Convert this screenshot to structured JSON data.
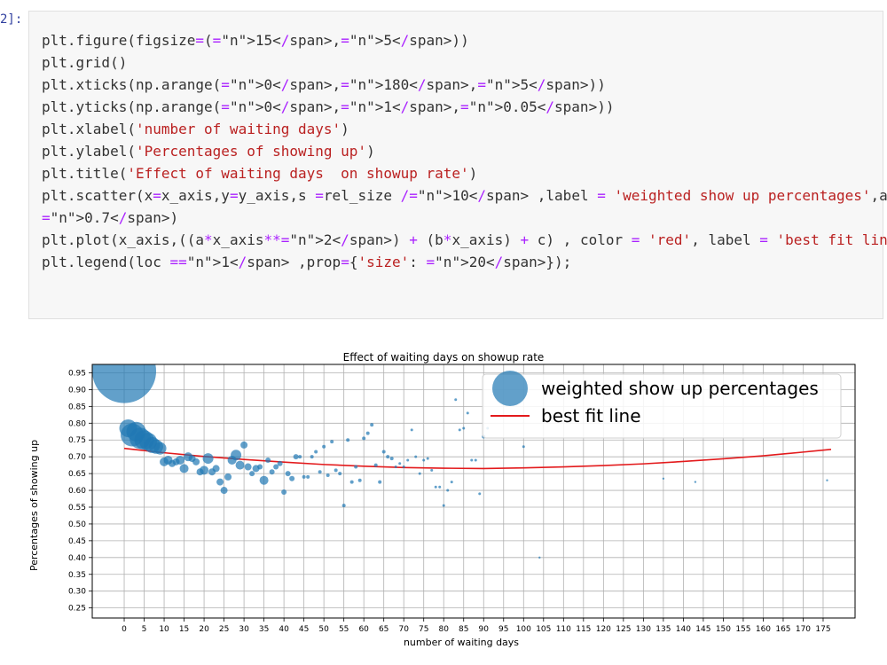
{
  "cell": {
    "prompt": "2]:",
    "code_lines": [
      "plt.figure(figsize=(15,5))",
      "plt.grid()",
      "plt.xticks(np.arange(0,180,5))",
      "plt.yticks(np.arange(0,1,0.05))",
      "plt.xlabel('number of waiting days')",
      "plt.ylabel('Percentages of showing up')",
      "plt.title('Effect of waiting days  on showup rate')",
      "plt.scatter(x=x_axis,y=y_axis,s =rel_size /10 ,label = 'weighted show up percentages',alpha=",
      "0.7)",
      "plt.plot(x_axis,((a*x_axis**2) + (b*x_axis) + c) , color = 'red', label = 'best fit line')",
      "plt.legend(loc =1 ,prop={'size': 20});"
    ]
  },
  "chart_data": {
    "type": "scatter",
    "title": "Effect of waiting days  on showup rate",
    "xlabel": "number of waiting days",
    "ylabel": "Percentages of showing up",
    "xlim": [
      -8,
      183
    ],
    "ylim": [
      0.22,
      0.975
    ],
    "xticks": [
      0,
      5,
      10,
      15,
      20,
      25,
      30,
      35,
      40,
      45,
      50,
      55,
      60,
      65,
      70,
      75,
      80,
      85,
      90,
      95,
      100,
      105,
      110,
      115,
      120,
      125,
      130,
      135,
      140,
      145,
      150,
      155,
      160,
      165,
      170,
      175
    ],
    "yticks": [
      0.25,
      0.3,
      0.35,
      0.4,
      0.45,
      0.5,
      0.55,
      0.6,
      0.65,
      0.7,
      0.75,
      0.8,
      0.85,
      0.9,
      0.95
    ],
    "grid": true,
    "legend_position": "top-right",
    "series": [
      {
        "name": "weighted show up percentages",
        "kind": "scatter",
        "color": "#1f77b4",
        "points": [
          [
            0,
            0.955,
            36
          ],
          [
            1,
            0.785,
            10
          ],
          [
            2,
            0.765,
            13
          ],
          [
            3,
            0.775,
            11
          ],
          [
            4,
            0.755,
            12
          ],
          [
            5,
            0.75,
            11
          ],
          [
            6,
            0.745,
            10
          ],
          [
            7,
            0.735,
            9
          ],
          [
            8,
            0.73,
            8
          ],
          [
            9,
            0.725,
            7
          ],
          [
            10,
            0.685,
            5
          ],
          [
            11,
            0.69,
            5
          ],
          [
            12,
            0.68,
            4
          ],
          [
            13,
            0.685,
            4
          ],
          [
            14,
            0.69,
            5
          ],
          [
            15,
            0.665,
            5
          ],
          [
            16,
            0.7,
            5
          ],
          [
            17,
            0.695,
            4
          ],
          [
            18,
            0.685,
            4
          ],
          [
            19,
            0.655,
            4
          ],
          [
            20,
            0.66,
            5
          ],
          [
            21,
            0.695,
            6
          ],
          [
            22,
            0.655,
            4
          ],
          [
            23,
            0.665,
            4
          ],
          [
            24,
            0.625,
            4
          ],
          [
            25,
            0.6,
            4
          ],
          [
            26,
            0.64,
            4
          ],
          [
            27,
            0.69,
            5
          ],
          [
            28,
            0.705,
            6
          ],
          [
            29,
            0.675,
            5
          ],
          [
            30,
            0.735,
            4
          ],
          [
            31,
            0.67,
            4
          ],
          [
            32,
            0.65,
            3
          ],
          [
            33,
            0.665,
            4
          ],
          [
            34,
            0.67,
            3
          ],
          [
            35,
            0.63,
            5
          ],
          [
            36,
            0.69,
            3
          ],
          [
            37,
            0.655,
            3
          ],
          [
            38,
            0.67,
            3
          ],
          [
            39,
            0.68,
            3
          ],
          [
            40,
            0.595,
            3
          ],
          [
            41,
            0.65,
            3
          ],
          [
            42,
            0.635,
            3
          ],
          [
            43,
            0.7,
            3
          ],
          [
            44,
            0.7,
            2
          ],
          [
            45,
            0.64,
            2
          ],
          [
            46,
            0.64,
            2
          ],
          [
            47,
            0.7,
            2
          ],
          [
            48,
            0.715,
            2
          ],
          [
            49,
            0.655,
            2
          ],
          [
            50,
            0.73,
            2
          ],
          [
            51,
            0.645,
            2
          ],
          [
            52,
            0.745,
            2
          ],
          [
            53,
            0.66,
            2
          ],
          [
            54,
            0.65,
            2
          ],
          [
            55,
            0.555,
            2
          ],
          [
            56,
            0.75,
            2
          ],
          [
            57,
            0.625,
            2
          ],
          [
            58,
            0.67,
            2
          ],
          [
            59,
            0.63,
            2
          ],
          [
            60,
            0.755,
            2
          ],
          [
            61,
            0.77,
            2
          ],
          [
            62,
            0.795,
            2
          ],
          [
            63,
            0.675,
            2
          ],
          [
            64,
            0.625,
            2
          ],
          [
            65,
            0.715,
            2
          ],
          [
            66,
            0.7,
            2
          ],
          [
            67,
            0.695,
            2
          ],
          [
            68,
            0.67,
            1.5
          ],
          [
            69,
            0.68,
            1.5
          ],
          [
            70,
            0.67,
            1.5
          ],
          [
            71,
            0.69,
            1.5
          ],
          [
            72,
            0.78,
            1.5
          ],
          [
            73,
            0.7,
            1.5
          ],
          [
            74,
            0.65,
            1.5
          ],
          [
            75,
            0.69,
            1.5
          ],
          [
            76,
            0.695,
            1.5
          ],
          [
            77,
            0.66,
            1.5
          ],
          [
            78,
            0.61,
            1.5
          ],
          [
            79,
            0.61,
            1.5
          ],
          [
            80,
            0.555,
            1.5
          ],
          [
            81,
            0.6,
            1.5
          ],
          [
            82,
            0.625,
            1.5
          ],
          [
            83,
            0.87,
            1.5
          ],
          [
            84,
            0.78,
            1.5
          ],
          [
            85,
            0.785,
            1.5
          ],
          [
            86,
            0.83,
            1.5
          ],
          [
            87,
            0.69,
            1.5
          ],
          [
            88,
            0.69,
            1.5
          ],
          [
            89,
            0.59,
            1.5
          ],
          [
            90,
            0.76,
            2
          ],
          [
            91,
            0.785,
            1.5
          ],
          [
            100,
            0.73,
            1.5
          ],
          [
            104,
            0.4,
            1.2
          ],
          [
            135,
            0.635,
            1.2
          ],
          [
            143,
            0.625,
            1.2
          ],
          [
            176,
            0.63,
            1.2
          ]
        ]
      },
      {
        "name": "best fit line",
        "kind": "line",
        "color": "#e31a1c",
        "points": [
          [
            0,
            0.725
          ],
          [
            10,
            0.712
          ],
          [
            20,
            0.701
          ],
          [
            30,
            0.692
          ],
          [
            40,
            0.684
          ],
          [
            50,
            0.677
          ],
          [
            60,
            0.672
          ],
          [
            70,
            0.668
          ],
          [
            80,
            0.666
          ],
          [
            90,
            0.665
          ],
          [
            100,
            0.667
          ],
          [
            110,
            0.67
          ],
          [
            120,
            0.674
          ],
          [
            130,
            0.679
          ],
          [
            140,
            0.686
          ],
          [
            150,
            0.694
          ],
          [
            160,
            0.703
          ],
          [
            170,
            0.714
          ],
          [
            177,
            0.722
          ]
        ]
      }
    ]
  }
}
